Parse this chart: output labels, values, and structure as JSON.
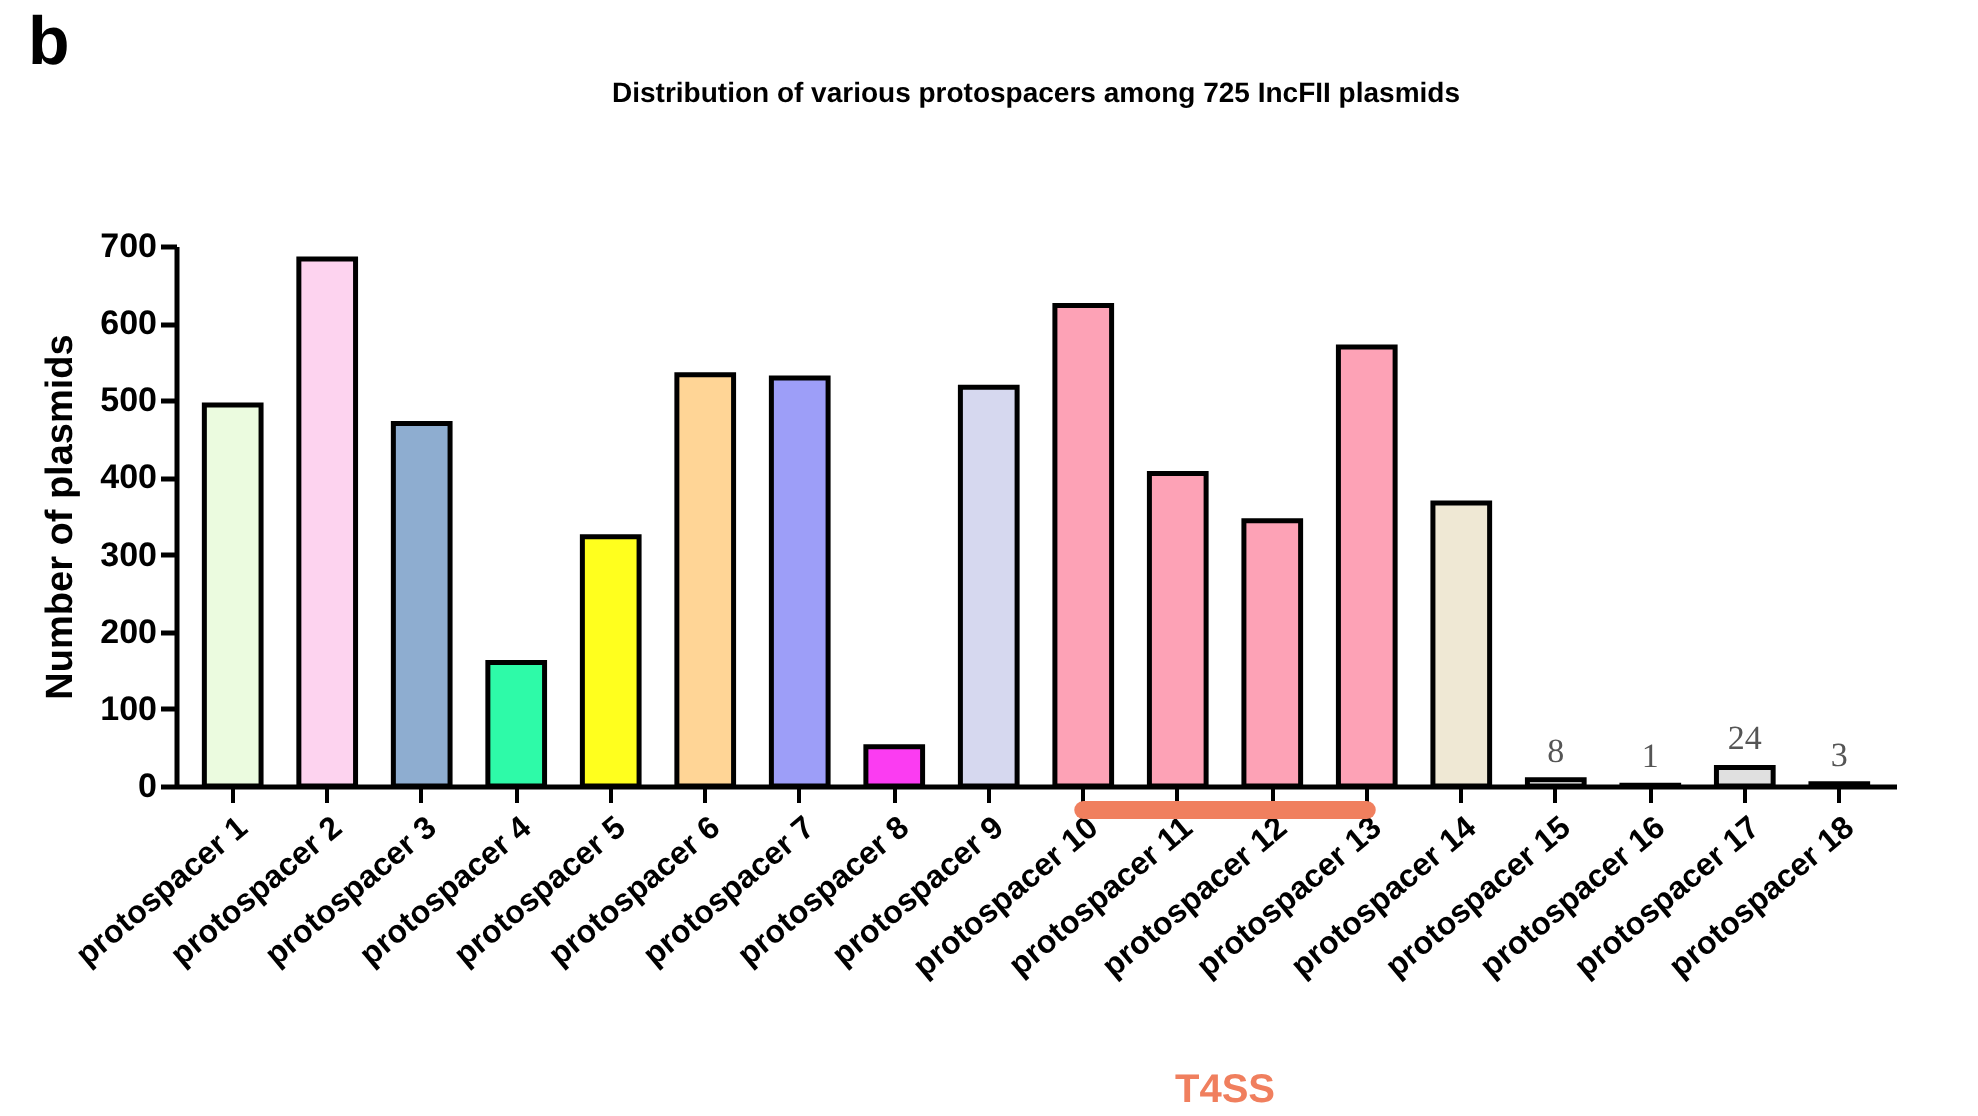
{
  "chart_data": {
    "type": "bar",
    "title": "Distribution of various protospacers among 725 IncFII plasmids",
    "ylabel": "Number of plasmids",
    "categories": [
      "protospacer 1",
      "protospacer 2",
      "protospacer 3",
      "protospacer 4",
      "protospacer 5",
      "protospacer 6",
      "protospacer 7",
      "protospacer 8",
      "protospacer 9",
      "protospacer 10",
      "protospacer 11",
      "protospacer 12",
      "protospacer 13",
      "protospacer 14",
      "protospacer 15",
      "protospacer 16",
      "protospacer 17",
      "protospacer 18"
    ],
    "values": [
      494,
      683,
      470,
      160,
      323,
      533,
      529,
      51,
      517,
      623,
      405,
      344,
      569,
      367,
      8,
      1,
      24,
      3
    ],
    "colors": [
      "#ebfbdf",
      "#fdd3ef",
      "#8eadd0",
      "#2efaa8",
      "#ffff1e",
      "#ffd596",
      "#9d9ef8",
      "#fb3cf2",
      "#d6d8ef",
      "#fda2b6",
      "#fda2b6",
      "#fda2b6",
      "#fda2b6",
      "#efe8d4",
      "#ffffff",
      "#ffffff",
      "#e0e0e0",
      "#ffffff"
    ],
    "value_labels": [
      null,
      null,
      null,
      null,
      null,
      null,
      null,
      null,
      null,
      null,
      null,
      null,
      null,
      null,
      "8",
      "1",
      "24",
      "3"
    ],
    "ylim": [
      0,
      700
    ],
    "yticks": [
      0,
      100,
      200,
      300,
      400,
      500,
      600,
      700
    ],
    "grid": false,
    "legend": false,
    "annotations": [
      "b",
      "T4SS"
    ]
  }
}
